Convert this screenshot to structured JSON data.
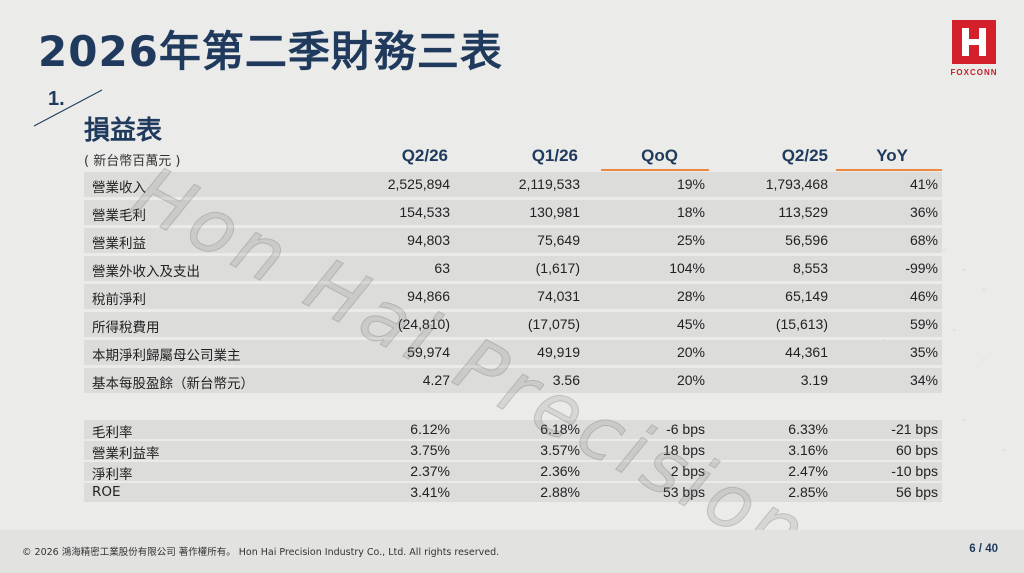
{
  "title": "2026年第二季財務三表",
  "logo": {
    "text": "FOXCONN",
    "color": "#d3202a"
  },
  "section": {
    "number": "1.",
    "title": "損益表",
    "unit": "( 新台幣百萬元 )"
  },
  "columns": [
    "Q2/26",
    "Q1/26",
    "QoQ",
    "Q2/25",
    "YoY"
  ],
  "accent_color": "#ec8a43",
  "income_rows": [
    {
      "label": "營業收入",
      "values": [
        "2,525,894",
        "2,119,533",
        "19%",
        "1,793,468",
        "41%"
      ]
    },
    {
      "label": "營業毛利",
      "values": [
        "154,533",
        "130,981",
        "18%",
        "113,529",
        "36%"
      ]
    },
    {
      "label": "營業利益",
      "values": [
        "94,803",
        "75,649",
        "25%",
        "56,596",
        "68%"
      ]
    },
    {
      "label": "營業外收入及支出",
      "values": [
        "63",
        "(1,617)",
        "104%",
        "8,553",
        "-99%"
      ]
    },
    {
      "label": "稅前淨利",
      "values": [
        "94,866",
        "74,031",
        "28%",
        "65,149",
        "46%"
      ]
    },
    {
      "label": "所得稅費用",
      "values": [
        "(24,810)",
        "(17,075)",
        "45%",
        "(15,613)",
        "59%"
      ]
    },
    {
      "label": "本期淨利歸屬母公司業主",
      "values": [
        "59,974",
        "49,919",
        "20%",
        "44,361",
        "35%"
      ]
    },
    {
      "label": "基本每股盈餘（新台幣元）",
      "values": [
        "4.27",
        "3.56",
        "20%",
        "3.19",
        "34%"
      ]
    }
  ],
  "ratio_rows": [
    {
      "label": "毛利率",
      "values": [
        "6.12%",
        "6.18%",
        "-6 bps",
        "6.33%",
        "-21 bps"
      ]
    },
    {
      "label": "營業利益率",
      "values": [
        "3.75%",
        "3.57%",
        "18 bps",
        "3.16%",
        "60 bps"
      ]
    },
    {
      "label": "淨利率",
      "values": [
        "2.37%",
        "2.36%",
        "2 bps",
        "2.47%",
        "-10 bps"
      ]
    },
    {
      "label": "ROE",
      "values": [
        "3.41%",
        "2.88%",
        "53 bps",
        "2.85%",
        "56 bps"
      ]
    }
  ],
  "watermark": "Hon Hai Precision",
  "footer": {
    "copyright": "© 2026 鴻海精密工業股份有限公司 著作權所有。 Hon Hai Precision Industry Co., Ltd. All rights reserved.",
    "page": "6 / 40"
  }
}
